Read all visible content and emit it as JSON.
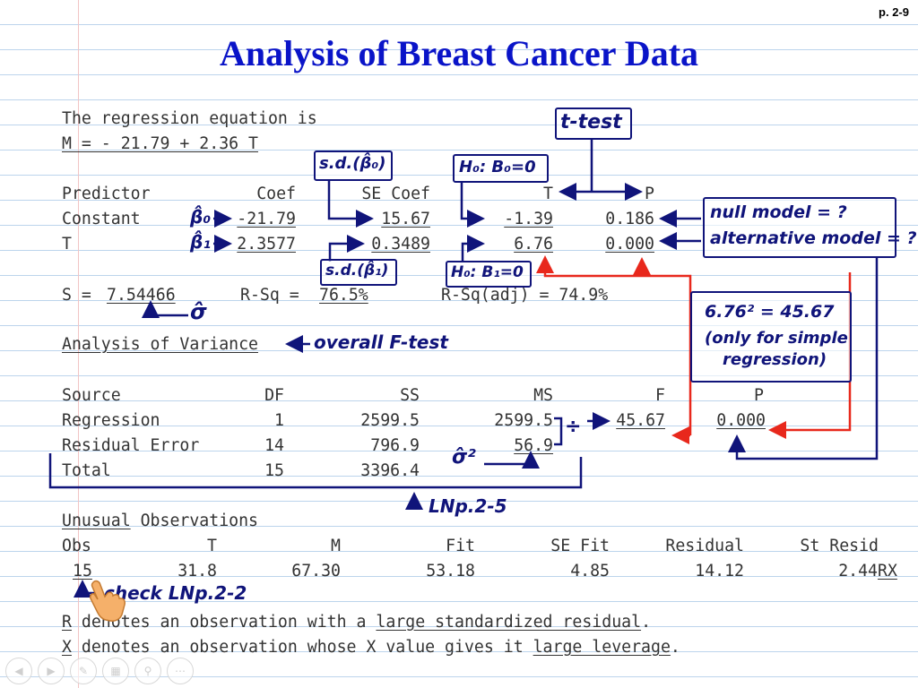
{
  "page_number": "p. 2-9",
  "title": "Analysis of Breast Cancer Data",
  "regression": {
    "intro": "The regression equation is",
    "equation": "M = - 21.79 + 2.36 T"
  },
  "coef_table": {
    "headers": {
      "predictor": "Predictor",
      "coef": "Coef",
      "se_coef": "SE Coef",
      "t": "T",
      "p": "P"
    },
    "rows": [
      {
        "predictor": "Constant",
        "coef": "-21.79",
        "se_coef": "15.67",
        "t": "-1.39",
        "p": "0.186"
      },
      {
        "predictor": "T",
        "coef": "2.3577",
        "se_coef": "0.3489",
        "t": "6.76",
        "p": "0.000"
      }
    ]
  },
  "fit_stats": {
    "s_label": "S =",
    "s_value": "7.54466",
    "rsq_label": "R-Sq =",
    "rsq_value": "76.5%",
    "rsq_adj": "R-Sq(adj) = 74.9%"
  },
  "anova": {
    "heading": "Analysis of Variance",
    "headers": {
      "source": "Source",
      "df": "DF",
      "ss": "SS",
      "ms": "MS",
      "f": "F",
      "p": "P"
    },
    "rows": [
      {
        "source": "Regression",
        "df": "1",
        "ss": "2599.5",
        "ms": "2599.5",
        "f": "45.67",
        "p": "0.000"
      },
      {
        "source": "Residual Error",
        "df": "14",
        "ss": "796.9",
        "ms": "56.9",
        "f": "",
        "p": ""
      },
      {
        "source": "Total",
        "df": "15",
        "ss": "3396.4",
        "ms": "",
        "f": "",
        "p": ""
      }
    ]
  },
  "unusual": {
    "heading_a": "Unusual",
    "heading_b": " Observations",
    "headers": {
      "obs": "Obs",
      "t": "T",
      "m": "M",
      "fit": "Fit",
      "se_fit": "SE Fit",
      "residual": "Residual",
      "st_resid": "St Resid"
    },
    "rows": [
      {
        "obs": "15",
        "t": "31.8",
        "m": "67.30",
        "fit": "53.18",
        "se_fit": "4.85",
        "residual": "14.12",
        "st_resid": "2.44",
        "flag": "RX"
      }
    ]
  },
  "footnotes": {
    "r_letter": "R",
    "r_text_a": " denotes an observation with a ",
    "r_text_b": "large standardized residual",
    "r_text_c": ".",
    "x_letter": "X",
    "x_text_a": " denotes an observation whose X value gives it ",
    "x_text_b": "large leverage",
    "x_text_c": "."
  },
  "annotations": {
    "t_test": "t-test",
    "sd_b0": "s.d.(β̂₀)",
    "h0_b0": "H₀: B₀=0",
    "sd_b1": "s.d.(β̂₁)",
    "h0_b1": "H₀: B₁=0",
    "b0_hat": "β̂₀",
    "b1_hat": "β̂₁",
    "null_model": "null model = ?",
    "alt_model": "alternative model = ?",
    "sigma_hat": "σ̂",
    "overall_f": "overall F-test",
    "f_note_line1": "6.76² = 45.67",
    "f_note_line2": "(only for simple",
    "f_note_line3": "regression)",
    "sigma2_hat": "σ̂²",
    "divide": "÷",
    "lnp_25": "LNp.2-5",
    "check_lnp": "check LNp.2-2"
  },
  "colors": {
    "ink": "#10147a",
    "red": "#e8281c",
    "title": "#0a14c8"
  },
  "toolbar_icons": [
    "prev-icon",
    "next-icon",
    "pen-icon",
    "pages-icon",
    "zoom-icon",
    "more-icon"
  ]
}
